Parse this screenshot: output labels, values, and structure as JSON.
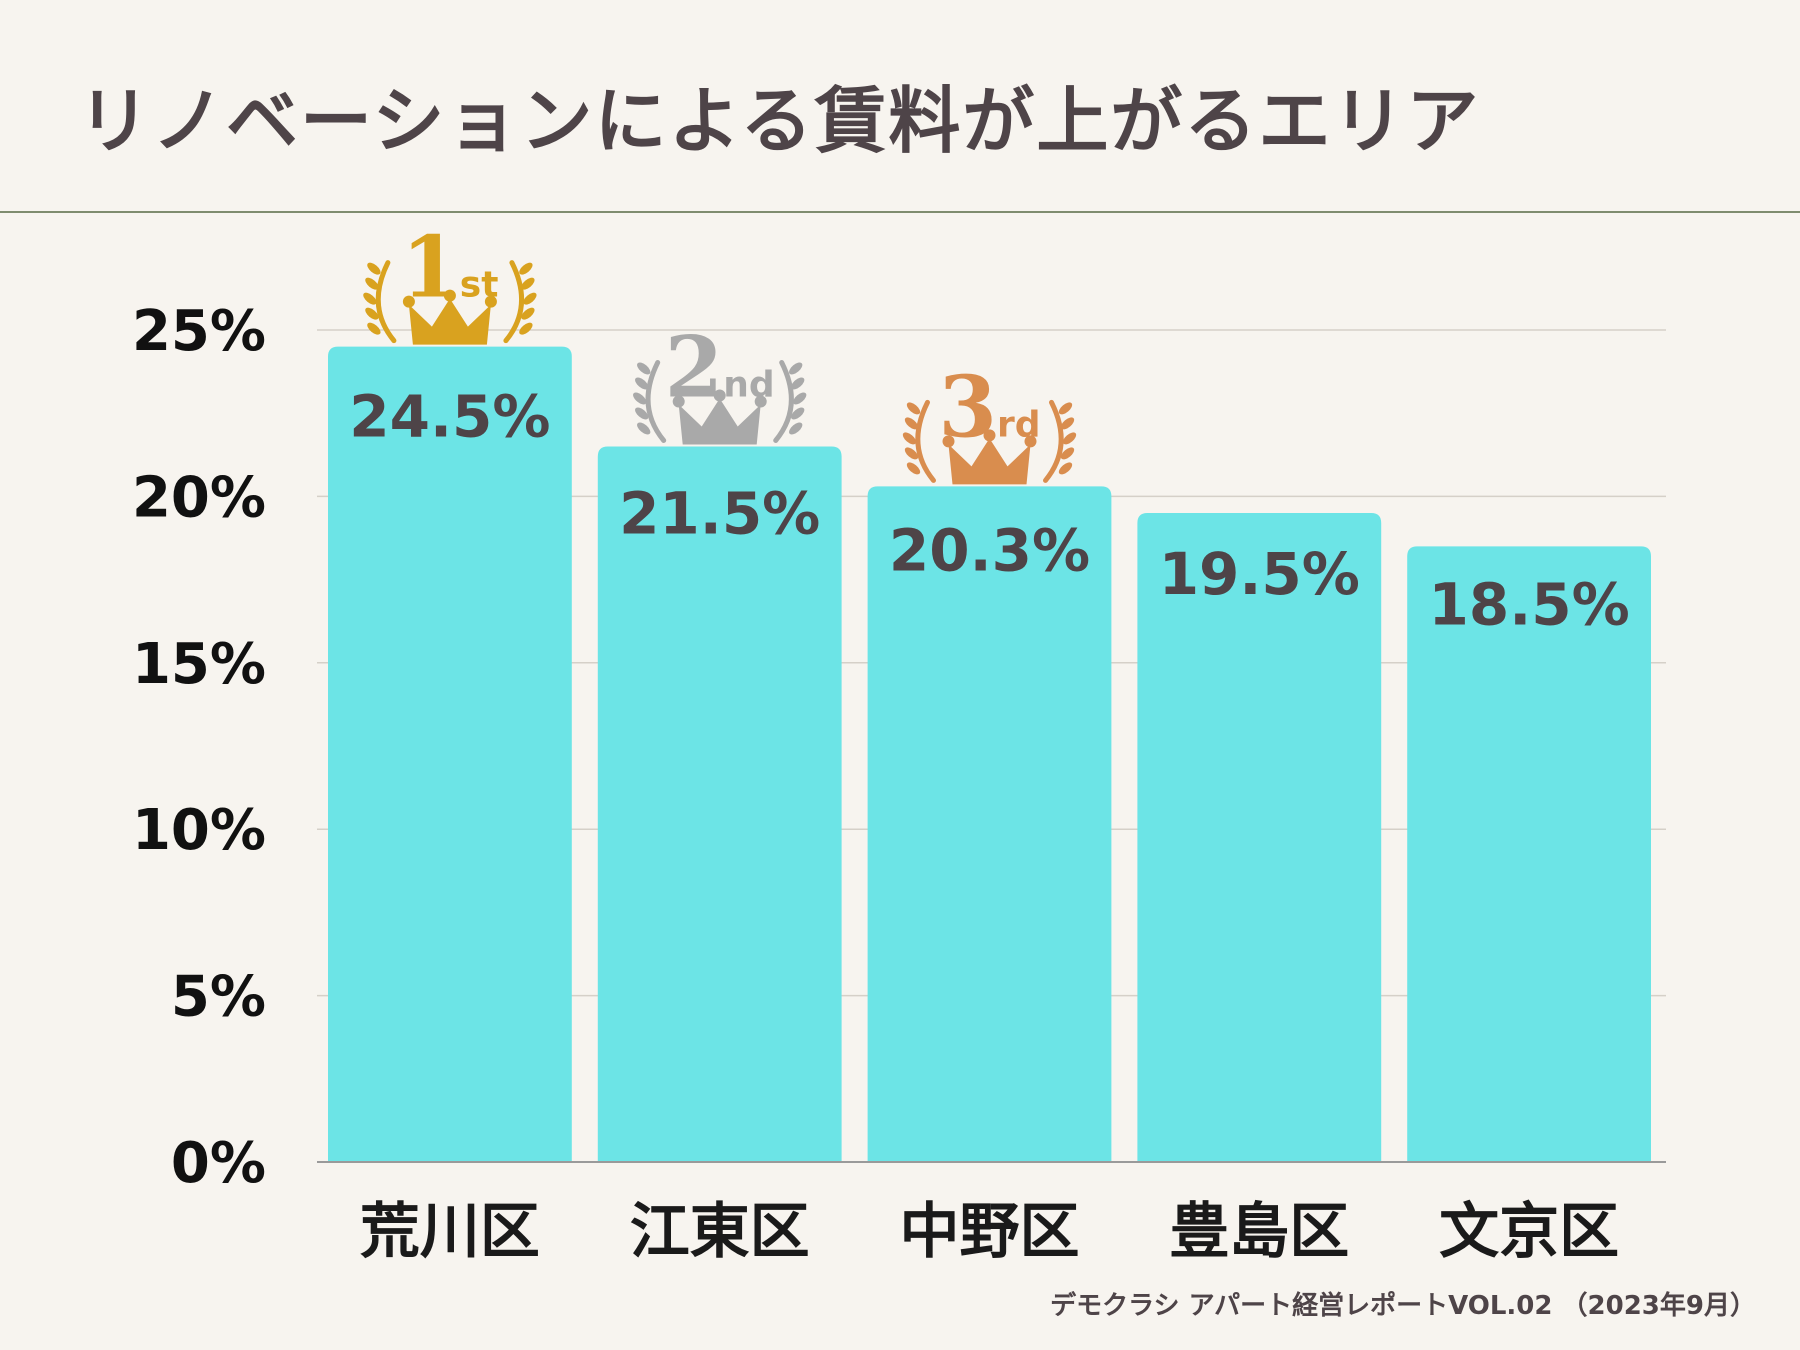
{
  "header": {
    "title": "リノベーションによる賃料が上がるエリア"
  },
  "footer": {
    "source": "デモクラシ アパート経営レポートVOL.02 （2023年9月）"
  },
  "colors": {
    "bar": "#6ce4e6",
    "text": "#4e4448",
    "axis_text": "#111111",
    "grid": "#d5d0c8",
    "gold": "#d9a21f",
    "silver": "#a9a9a9",
    "bronze": "#d98d4e"
  },
  "chart_data": {
    "type": "bar",
    "title": "リノベーションによる賃料が上がるエリア",
    "categories": [
      "荒川区",
      "江東区",
      "中野区",
      "豊島区",
      "文京区"
    ],
    "values": [
      24.5,
      21.5,
      20.3,
      19.5,
      18.5
    ],
    "value_labels": [
      "24.5%",
      "21.5%",
      "20.3%",
      "19.5%",
      "18.5%"
    ],
    "ylim": [
      0,
      25
    ],
    "yticks": [
      0,
      5,
      10,
      15,
      20,
      25
    ],
    "ytick_labels": [
      "0%",
      "5%",
      "10%",
      "15%",
      "20%",
      "25%"
    ],
    "xlabel": "",
    "ylabel": "",
    "grid": true,
    "rank_badges": [
      {
        "rank": "1",
        "suffix": "st",
        "color": "gold"
      },
      {
        "rank": "2",
        "suffix": "nd",
        "color": "silver"
      },
      {
        "rank": "3",
        "suffix": "rd",
        "color": "bronze"
      }
    ]
  }
}
